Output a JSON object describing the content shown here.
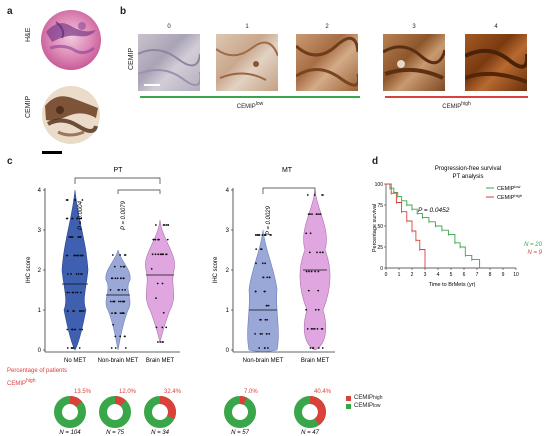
{
  "panel_a": {
    "label": "a",
    "he_label": "H&E",
    "cemip_label": "CEMIP"
  },
  "panel_b": {
    "label": "b",
    "row_label": "CEMIP",
    "scores": [
      "0",
      "1",
      "2",
      "3",
      "4"
    ],
    "group_low": "CEMIP",
    "group_low_sup": "low",
    "group_high": "CEMIP",
    "group_high_sup": "high",
    "low_color": "#3aa64a",
    "high_color": "#d9413a"
  },
  "panel_c": {
    "label": "c",
    "pt": {
      "title": "PT",
      "ylabel": "IHC score",
      "yticks": [
        "0",
        "1",
        "2",
        "3",
        "4"
      ],
      "categories": [
        "No MET",
        "Non-brain MET",
        "Brain MET"
      ],
      "pvalues": [
        "P = 0.0004",
        "P = 0.0079"
      ]
    },
    "mt": {
      "title": "MT",
      "ylabel": "IHC score",
      "yticks": [
        "0",
        "1",
        "2",
        "3",
        "4"
      ],
      "categories": [
        "Non-brain MET",
        "Brain MET"
      ],
      "pvalues": [
        "P = 0.0029"
      ]
    },
    "colors": {
      "no_met": "#3f5fb0",
      "non_brain": "#9aa8d8",
      "brain": "#e0a6e0"
    },
    "pct_title": "Percentage of patients",
    "pct_group": "CEMIP",
    "pct_group_sup": "high",
    "donuts": [
      {
        "pct_label": "13.5%",
        "n_label": "N = 104",
        "high_fraction": 0.135
      },
      {
        "pct_label": "12.0%",
        "n_label": "N = 75",
        "high_fraction": 0.12
      },
      {
        "pct_label": "32.4%",
        "n_label": "N = 34",
        "high_fraction": 0.324
      },
      {
        "pct_label": "7.0%",
        "n_label": "N = 57",
        "high_fraction": 0.07
      },
      {
        "pct_label": "40.4%",
        "n_label": "N = 47",
        "high_fraction": 0.404
      }
    ],
    "legend": [
      {
        "name": "CEMIP",
        "sup": "high",
        "color": "#d9413a"
      },
      {
        "name": "CEMIP",
        "sup": "low",
        "color": "#3aa64a"
      }
    ]
  },
  "chart_data": {
    "type": "line",
    "title": "Progression-free survival",
    "subtitle": "PT analysis",
    "xlabel": "Time to BrMets (yr)",
    "ylabel": "Percentage survival",
    "xlim": [
      0,
      10
    ],
    "ylim": [
      0,
      100
    ],
    "xticks": [
      "0",
      "1",
      "2",
      "3",
      "4",
      "5",
      "6",
      "7",
      "8",
      "9",
      "10"
    ],
    "yticks": [
      "0",
      "25",
      "50",
      "75",
      "100"
    ],
    "pvalue": "P = 0.0452",
    "legend_position": "top-right",
    "series": [
      {
        "name": "CEMIP",
        "sup": "low",
        "color": "#3aa64a",
        "n_label": "N = 20",
        "x": [
          0,
          0.3,
          0.6,
          0.9,
          1.2,
          1.6,
          2.0,
          2.4,
          2.8,
          3.3,
          3.8,
          4.3,
          4.8,
          5.3,
          5.7,
          6.1,
          6.6,
          7.2
        ],
        "y": [
          100,
          95,
          90,
          85,
          80,
          75,
          70,
          65,
          60,
          55,
          50,
          45,
          40,
          30,
          25,
          15,
          10,
          0
        ]
      },
      {
        "name": "CEMIP",
        "sup": "high",
        "color": "#d9413a",
        "n_label": "N = 9",
        "x": [
          0,
          0.4,
          0.8,
          1.2,
          1.6,
          2.0,
          2.3,
          2.6,
          3.0
        ],
        "y": [
          100,
          89,
          78,
          67,
          56,
          44,
          33,
          22,
          0
        ]
      }
    ]
  }
}
